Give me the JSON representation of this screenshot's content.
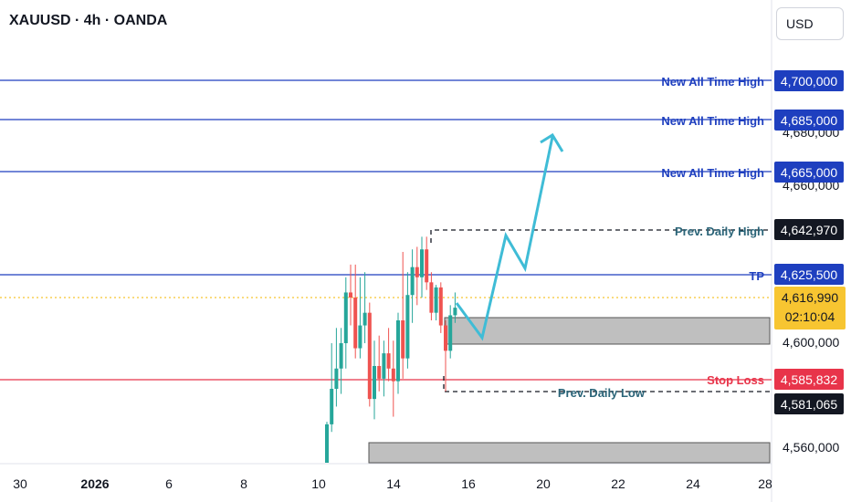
{
  "header": {
    "title": "XAUUSD · 4h · OANDA",
    "currency_button": "USD"
  },
  "price_scale": {
    "ticks": [
      "4,680,000",
      "4,660,000",
      "4,600,000",
      "4,560,000"
    ]
  },
  "levels": [
    {
      "label": "New All Time High",
      "price_label": "4,700,000",
      "value": 4700000,
      "color": "#1e3fbf"
    },
    {
      "label": "New All Time High",
      "price_label": "4,685,000",
      "value": 4685000,
      "color": "#1e3fbf"
    },
    {
      "label": "New All Time High",
      "price_label": "4,665,000",
      "value": 4665000,
      "color": "#1e3fbf"
    },
    {
      "label": "Prev. Daily High",
      "price_label": "4,642,970",
      "value": 4642970,
      "color": "#131722"
    },
    {
      "label": "TP",
      "price_label": "4,625,500",
      "value": 4625500,
      "color": "#1e3fbf"
    },
    {
      "label": "Stop Loss",
      "price_label": "4,585,832",
      "value": 4585832,
      "color": "#e8344a"
    },
    {
      "label": "Prev. Daily Low",
      "price_label": "4,581,065",
      "value": 4581065,
      "color": "#131722"
    }
  ],
  "current_price": {
    "value": 4616990,
    "price_label": "4,616,990",
    "countdown": "02:10:04",
    "color": "#f7c531"
  },
  "time_axis": {
    "ticks": [
      "30",
      "2026",
      "6",
      "8",
      "10",
      "14",
      "16",
      "20",
      "22",
      "24",
      "28"
    ]
  },
  "colors": {
    "bull": "#26a69a",
    "bear": "#ef5350",
    "projection": "#3fbcd6",
    "zone": "#bfbfbf"
  },
  "chart_data": {
    "type": "candlestick",
    "title": "XAUUSD · 4h · OANDA",
    "ylim": [
      4553000,
      4721000
    ],
    "candles": [
      {
        "o": 4552000,
        "h": 4569000,
        "l": 4546000,
        "c": 4568000
      },
      {
        "o": 4568000,
        "h": 4600000,
        "l": 4565000,
        "c": 4582000
      },
      {
        "o": 4582000,
        "h": 4606000,
        "l": 4575000,
        "c": 4590000
      },
      {
        "o": 4590000,
        "h": 4606000,
        "l": 4580000,
        "c": 4600000
      },
      {
        "o": 4600000,
        "h": 4626000,
        "l": 4590000,
        "c": 4620000
      },
      {
        "o": 4620000,
        "h": 4631000,
        "l": 4607000,
        "c": 4618000
      },
      {
        "o": 4618000,
        "h": 4631000,
        "l": 4594000,
        "c": 4598000
      },
      {
        "o": 4598000,
        "h": 4626000,
        "l": 4594000,
        "c": 4607000
      },
      {
        "o": 4607000,
        "h": 4628000,
        "l": 4600000,
        "c": 4612000
      },
      {
        "o": 4612000,
        "h": 4616000,
        "l": 4575000,
        "c": 4578000
      },
      {
        "o": 4578000,
        "h": 4601000,
        "l": 4570000,
        "c": 4591000
      },
      {
        "o": 4591000,
        "h": 4603000,
        "l": 4581000,
        "c": 4586000
      },
      {
        "o": 4586000,
        "h": 4601000,
        "l": 4579000,
        "c": 4596000
      },
      {
        "o": 4596000,
        "h": 4606000,
        "l": 4585000,
        "c": 4590000
      },
      {
        "o": 4590000,
        "h": 4601000,
        "l": 4571000,
        "c": 4585000
      },
      {
        "o": 4585000,
        "h": 4612000,
        "l": 4580000,
        "c": 4609000
      },
      {
        "o": 4609000,
        "h": 4636000,
        "l": 4586000,
        "c": 4594000
      },
      {
        "o": 4594000,
        "h": 4628000,
        "l": 4590000,
        "c": 4619000
      },
      {
        "o": 4619000,
        "h": 4637000,
        "l": 4608000,
        "c": 4630000
      },
      {
        "o": 4630000,
        "h": 4638000,
        "l": 4615000,
        "c": 4626000
      },
      {
        "o": 4626000,
        "h": 4642000,
        "l": 4618000,
        "c": 4637000
      },
      {
        "o": 4637000,
        "h": 4642000,
        "l": 4621000,
        "c": 4624000
      },
      {
        "o": 4624000,
        "h": 4628000,
        "l": 4609000,
        "c": 4612000
      },
      {
        "o": 4612000,
        "h": 4623000,
        "l": 4609000,
        "c": 4622000
      },
      {
        "o": 4622000,
        "h": 4624000,
        "l": 4604000,
        "c": 4607000
      },
      {
        "o": 4607000,
        "h": 4609000,
        "l": 4581000,
        "c": 4597000
      },
      {
        "o": 4597000,
        "h": 4615000,
        "l": 4594000,
        "c": 4611000
      },
      {
        "o": 4611000,
        "h": 4620000,
        "l": 4608000,
        "c": 4614000
      }
    ]
  }
}
